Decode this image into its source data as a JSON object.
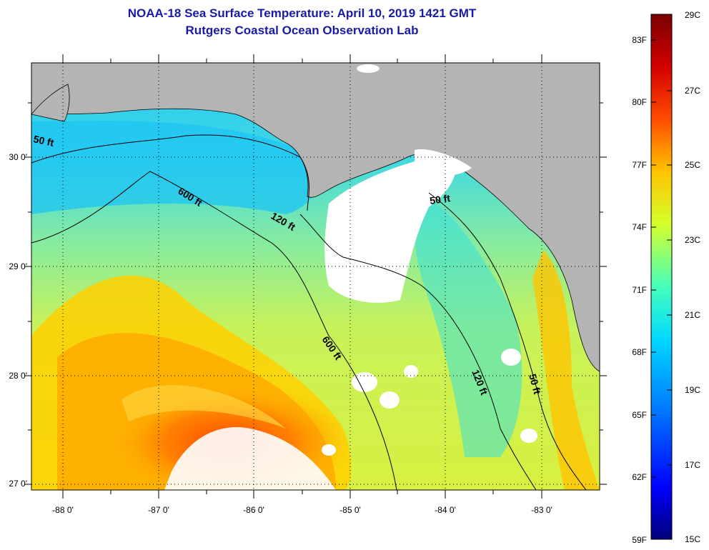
{
  "title": {
    "line1": "NOAA-18 Sea Surface Temperature:  April 10, 2019 1421 GMT",
    "line2": "Rutgers Coastal Ocean Observation Lab"
  },
  "map": {
    "region": "Northeastern Gulf of Mexico",
    "lon_range": [
      -88.35,
      -82.45
    ],
    "lat_range": [
      26.95,
      30.9
    ],
    "lon_ticks": [
      "-88 0'",
      "-87 0'",
      "-86 0'",
      "-85 0'",
      "-84 0'",
      "-83 0'"
    ],
    "lat_ticks": [
      "30 0'",
      "29 0'",
      "28 0'",
      "27 0'"
    ],
    "land_color": "#b4b4b4",
    "cloud_color": "#ffffff",
    "isobaths": [
      {
        "label": "50 ft"
      },
      {
        "label": "120 ft"
      },
      {
        "label": "600 ft"
      }
    ],
    "isobath_labels": [
      "50 ft",
      "120 ft",
      "600 ft",
      "600 ft",
      "50 ft",
      "120 ft",
      "50 ft"
    ]
  },
  "colorbar": {
    "f_labels": [
      "83F",
      "80F",
      "77F",
      "74F",
      "71F",
      "68F",
      "65F",
      "62F",
      "59F"
    ],
    "c_labels": [
      "29C",
      "27C",
      "25C",
      "23C",
      "21C",
      "19C",
      "17C",
      "15C"
    ],
    "colors": [
      "#00007a",
      "#0000ff",
      "#007cff",
      "#00d8ff",
      "#44ffbc",
      "#d4ff2c",
      "#ffc400",
      "#ff4c00",
      "#d40000",
      "#7a0000"
    ]
  }
}
